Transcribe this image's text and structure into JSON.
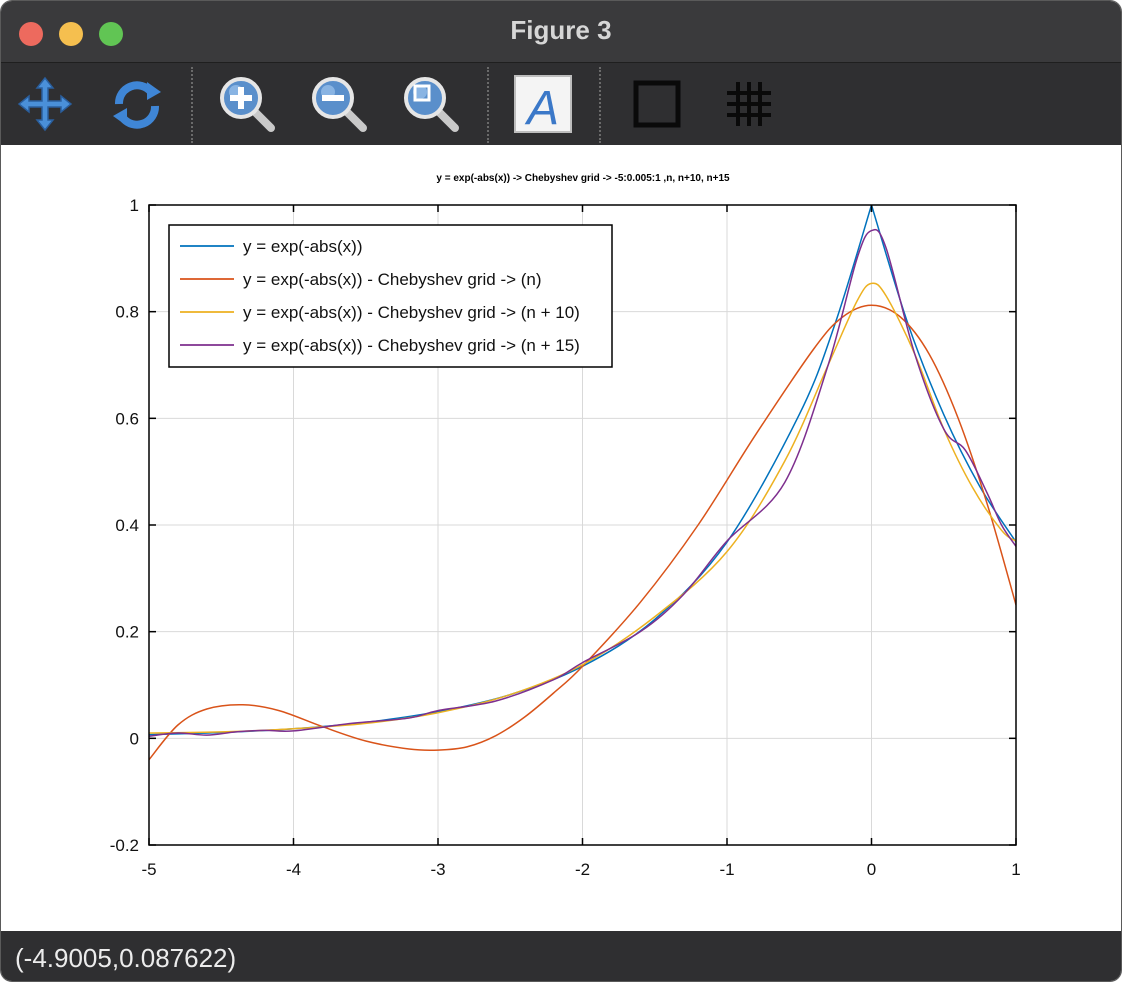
{
  "window": {
    "title": "Figure 3"
  },
  "toolbar": {
    "buttons": [
      {
        "name": "pan-icon"
      },
      {
        "name": "rotate-icon"
      },
      {
        "name": "zoom-in-icon"
      },
      {
        "name": "zoom-out-icon"
      },
      {
        "name": "zoom-reset-icon"
      },
      {
        "name": "text-icon"
      },
      {
        "name": "box-icon"
      },
      {
        "name": "grid-icon"
      }
    ]
  },
  "status": {
    "coords": "(-4.9005,0.087622)"
  },
  "chart_data": {
    "type": "line",
    "title": "y = exp(-abs(x)) -> Chebyshev grid -> -5:0.005:1 ,n, n+10, n+15",
    "xlabel": "",
    "ylabel": "",
    "xlim": [
      -5,
      1
    ],
    "ylim": [
      -0.2,
      1
    ],
    "xticks": [
      -5,
      -4,
      -3,
      -2,
      -1,
      0,
      1
    ],
    "yticks": [
      -0.2,
      0,
      0.2,
      0.4,
      0.6,
      0.8,
      1
    ],
    "xtick_labels": [
      "-5",
      "-4",
      "-3",
      "-2",
      "-1",
      "0",
      "1"
    ],
    "ytick_labels": [
      "-0.2",
      "0",
      "0.2",
      "0.4",
      "0.6",
      "0.8",
      "1"
    ],
    "grid": true,
    "legend_position": "top-left",
    "series": [
      {
        "name": "y = exp(-abs(x))",
        "color": "#0072bd",
        "x": [
          -5,
          -4.5,
          -4,
          -3.5,
          -3,
          -2.5,
          -2,
          -1.5,
          -1,
          -0.5,
          -0.25,
          0,
          0.25,
          0.5,
          0.75,
          1
        ],
        "y": [
          0.007,
          0.011,
          0.018,
          0.03,
          0.05,
          0.082,
          0.135,
          0.223,
          0.368,
          0.607,
          0.779,
          1.0,
          0.779,
          0.607,
          0.472,
          0.368
        ]
      },
      {
        "name": "y = exp(-abs(x)) - Chebyshev grid -> (n)",
        "color": "#d95319",
        "x": [
          -5,
          -4.8,
          -4.6,
          -4.35,
          -4.1,
          -3.8,
          -3.5,
          -3.2,
          -3.0,
          -2.8,
          -2.6,
          -2.4,
          -2.2,
          -2.0,
          -1.6,
          -1.2,
          -0.8,
          -0.4,
          -0.2,
          0,
          0.2,
          0.4,
          0.6,
          0.8,
          1
        ],
        "y": [
          -0.04,
          0.025,
          0.055,
          0.063,
          0.052,
          0.022,
          -0.005,
          -0.02,
          -0.022,
          -0.016,
          0.005,
          0.04,
          0.085,
          0.135,
          0.255,
          0.4,
          0.57,
          0.73,
          0.79,
          0.812,
          0.79,
          0.72,
          0.6,
          0.44,
          0.25
        ]
      },
      {
        "name": "y = exp(-abs(x)) - Chebyshev grid -> (n + 10)",
        "color": "#edb120",
        "x": [
          -5,
          -4.5,
          -4,
          -3.5,
          -3,
          -2.5,
          -2,
          -1.5,
          -1,
          -0.6,
          -0.3,
          -0.1,
          0,
          0.1,
          0.3,
          0.5,
          0.7,
          0.9,
          1
        ],
        "y": [
          0.01,
          0.012,
          0.018,
          0.028,
          0.048,
          0.082,
          0.138,
          0.228,
          0.35,
          0.52,
          0.7,
          0.82,
          0.853,
          0.83,
          0.72,
          0.58,
          0.47,
          0.39,
          0.37
        ]
      },
      {
        "name": "y = exp(-abs(x)) - Chebyshev grid -> (n + 15)",
        "color": "#7e2f8e",
        "x": [
          -5,
          -4.8,
          -4.6,
          -4.4,
          -4.2,
          -4.0,
          -3.6,
          -3.2,
          -3.0,
          -2.6,
          -2.2,
          -2.0,
          -1.6,
          -1.3,
          -1.0,
          -0.6,
          -0.3,
          -0.1,
          0,
          0.1,
          0.3,
          0.5,
          0.65,
          0.8,
          0.9,
          1
        ],
        "y": [
          0.004,
          0.01,
          0.006,
          0.012,
          0.015,
          0.014,
          0.028,
          0.038,
          0.052,
          0.07,
          0.11,
          0.142,
          0.2,
          0.27,
          0.37,
          0.48,
          0.7,
          0.9,
          0.952,
          0.92,
          0.72,
          0.58,
          0.54,
          0.46,
          0.4,
          0.36
        ]
      }
    ]
  }
}
